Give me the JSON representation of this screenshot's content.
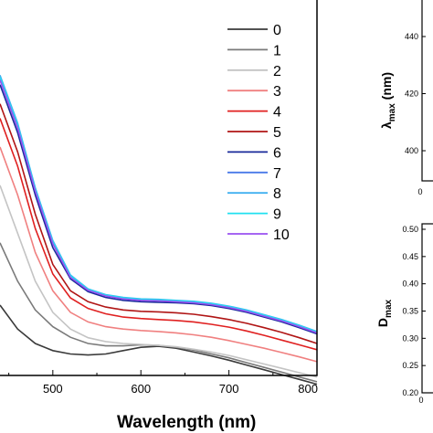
{
  "chart_data": [
    {
      "type": "line",
      "title": "",
      "xlabel": "Wavelength (nm)",
      "ylabel": "",
      "xlim": [
        440,
        800
      ],
      "x_ticks": [
        "500",
        "600",
        "700",
        "800"
      ],
      "legend_position": "top-right",
      "series": [
        {
          "name": "0",
          "color": "#3a3a3a",
          "x": [
            440,
            460,
            480,
            500,
            520,
            540,
            560,
            580,
            600,
            620,
            640,
            660,
            680,
            700,
            720,
            740,
            760,
            780,
            800
          ],
          "values": [
            0.33,
            0.28,
            0.25,
            0.235,
            0.228,
            0.226,
            0.228,
            0.235,
            0.242,
            0.244,
            0.24,
            0.232,
            0.224,
            0.215,
            0.205,
            0.195,
            0.185,
            0.175,
            0.165
          ]
        },
        {
          "name": "1",
          "color": "#7a7a7a",
          "x": [
            440,
            460,
            480,
            500,
            520,
            540,
            560,
            580,
            600,
            620,
            640,
            660,
            680,
            700,
            720,
            740,
            760,
            780,
            800
          ],
          "values": [
            0.46,
            0.38,
            0.32,
            0.285,
            0.263,
            0.25,
            0.245,
            0.245,
            0.247,
            0.246,
            0.242,
            0.236,
            0.228,
            0.22,
            0.21,
            0.2,
            0.19,
            0.18,
            0.17
          ]
        },
        {
          "name": "2",
          "color": "#c4c4c4",
          "x": [
            440,
            460,
            480,
            500,
            520,
            540,
            560,
            580,
            600,
            620,
            640,
            660,
            680,
            700,
            720,
            740,
            760,
            780,
            800
          ],
          "values": [
            0.58,
            0.48,
            0.38,
            0.315,
            0.28,
            0.262,
            0.254,
            0.25,
            0.248,
            0.246,
            0.243,
            0.238,
            0.232,
            0.225,
            0.216,
            0.207,
            0.198,
            0.189,
            0.18
          ]
        },
        {
          "name": "3",
          "color": "#f08080",
          "x": [
            440,
            460,
            480,
            500,
            520,
            540,
            560,
            580,
            600,
            620,
            640,
            660,
            680,
            700,
            720,
            740,
            760,
            780,
            800
          ],
          "values": [
            0.66,
            0.56,
            0.44,
            0.36,
            0.315,
            0.295,
            0.285,
            0.28,
            0.277,
            0.275,
            0.272,
            0.268,
            0.263,
            0.256,
            0.248,
            0.24,
            0.231,
            0.222,
            0.212
          ]
        },
        {
          "name": "4",
          "color": "#e02020",
          "x": [
            440,
            460,
            480,
            500,
            520,
            540,
            560,
            580,
            600,
            620,
            640,
            660,
            680,
            700,
            720,
            740,
            760,
            780,
            800
          ],
          "values": [
            0.72,
            0.62,
            0.49,
            0.395,
            0.345,
            0.323,
            0.312,
            0.305,
            0.302,
            0.3,
            0.298,
            0.295,
            0.29,
            0.284,
            0.276,
            0.267,
            0.257,
            0.247,
            0.237
          ]
        },
        {
          "name": "5",
          "color": "#b01515",
          "x": [
            440,
            460,
            480,
            500,
            520,
            540,
            560,
            580,
            600,
            620,
            640,
            660,
            680,
            700,
            720,
            740,
            760,
            780,
            800
          ],
          "values": [
            0.75,
            0.65,
            0.52,
            0.415,
            0.36,
            0.337,
            0.326,
            0.32,
            0.317,
            0.316,
            0.314,
            0.311,
            0.306,
            0.3,
            0.292,
            0.283,
            0.273,
            0.262,
            0.25
          ]
        },
        {
          "name": "6",
          "color": "#1a2a9a",
          "x": [
            440,
            460,
            480,
            500,
            520,
            540,
            560,
            580,
            600,
            620,
            640,
            660,
            680,
            700,
            720,
            740,
            760,
            780,
            800
          ],
          "values": [
            0.79,
            0.69,
            0.56,
            0.45,
            0.385,
            0.358,
            0.346,
            0.34,
            0.337,
            0.336,
            0.335,
            0.333,
            0.329,
            0.323,
            0.315,
            0.305,
            0.295,
            0.283,
            0.27
          ]
        },
        {
          "name": "7",
          "color": "#4a7ae8",
          "x": [
            440,
            460,
            480,
            500,
            520,
            540,
            560,
            580,
            600,
            620,
            640,
            660,
            680,
            700,
            720,
            740,
            760,
            780,
            800
          ],
          "values": [
            0.8,
            0.7,
            0.57,
            0.46,
            0.39,
            0.362,
            0.35,
            0.344,
            0.341,
            0.34,
            0.338,
            0.336,
            0.332,
            0.326,
            0.318,
            0.308,
            0.298,
            0.286,
            0.273
          ]
        },
        {
          "name": "8",
          "color": "#40b0f0",
          "x": [
            440,
            460,
            480,
            500,
            520,
            540,
            560,
            580,
            600,
            620,
            640,
            660,
            680,
            700,
            720,
            740,
            760,
            780,
            800
          ],
          "values": [
            0.81,
            0.71,
            0.575,
            0.465,
            0.393,
            0.364,
            0.352,
            0.346,
            0.343,
            0.342,
            0.34,
            0.338,
            0.334,
            0.328,
            0.32,
            0.31,
            0.3,
            0.288,
            0.275
          ]
        },
        {
          "name": "9",
          "color": "#20e0f0",
          "x": [
            440,
            460,
            480,
            500,
            520,
            540,
            560,
            580,
            600,
            620,
            640,
            660,
            680,
            700,
            720,
            740,
            760,
            780,
            800
          ],
          "values": [
            0.805,
            0.705,
            0.572,
            0.462,
            0.391,
            0.363,
            0.351,
            0.345,
            0.342,
            0.341,
            0.339,
            0.337,
            0.333,
            0.327,
            0.319,
            0.309,
            0.299,
            0.287,
            0.274
          ]
        },
        {
          "name": "10",
          "color": "#9a50f0",
          "x": [
            440,
            460,
            480,
            500,
            520,
            540,
            560,
            580,
            600,
            620,
            640,
            660,
            680,
            700,
            720,
            740,
            760,
            780,
            800
          ],
          "values": [
            0.8,
            0.7,
            0.568,
            0.458,
            0.388,
            0.361,
            0.349,
            0.343,
            0.34,
            0.339,
            0.337,
            0.335,
            0.331,
            0.325,
            0.317,
            0.307,
            0.297,
            0.285,
            0.272
          ]
        }
      ]
    },
    {
      "type": "scatter",
      "title": "",
      "ylabel": "λmax (nm)",
      "ylabel_symbol": "λ",
      "ylabel_subscript": "max",
      "ylabel_suffix": " (nm)",
      "ylim": [
        390,
        448
      ],
      "y_ticks": [
        "440",
        "420",
        "400"
      ],
      "x_ticks": [
        "0"
      ],
      "series": []
    },
    {
      "type": "scatter",
      "title": "",
      "ylabel": "Dmax",
      "ylabel_main": "D",
      "ylabel_subscript": "max",
      "ylim": [
        0.2,
        0.5
      ],
      "y_ticks": [
        "0.50",
        "0.45",
        "0.40",
        "0.35",
        "0.30",
        "0.25",
        "0.20"
      ],
      "x_ticks": [
        "0"
      ],
      "series": []
    }
  ]
}
